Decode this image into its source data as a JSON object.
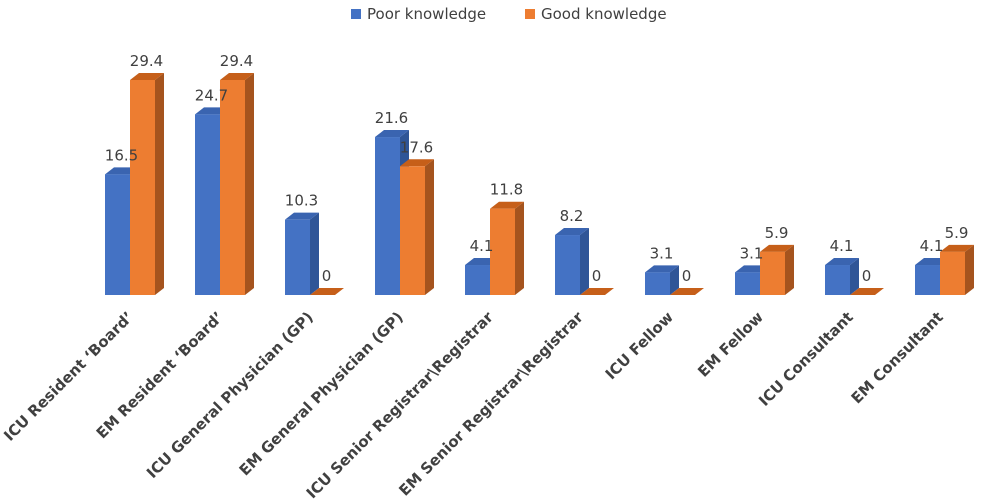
{
  "chart_data": {
    "type": "bar",
    "categories": [
      "ICU Resident ‘Board’",
      "EM Resident ‘Board’",
      "ICU General Physician (GP)",
      "EM General Physician (GP)",
      "ICU Senior Registrar\\Registrar",
      "EM Senior Registrar\\Registrar",
      "ICU Fellow",
      "EM Fellow",
      "ICU Consultant",
      "EM Consultant"
    ],
    "series": [
      {
        "name": "Poor knowledge",
        "values": [
          16.5,
          24.7,
          10.3,
          21.6,
          4.1,
          8.2,
          3.1,
          3.1,
          4.1,
          4.1
        ],
        "color": "#4472C4",
        "side_color": "#2F5597",
        "top_color": "#3A64B0"
      },
      {
        "name": "Good knowledge",
        "values": [
          29.4,
          29.4,
          0,
          17.6,
          11.8,
          0,
          0,
          5.9,
          0,
          5.9
        ],
        "color": "#ED7D31",
        "side_color": "#A5541E",
        "top_color": "#C65F19"
      }
    ],
    "value_labels": {
      "series_0": [
        "16.5",
        "24.7",
        "10.3",
        "21.6",
        "4.1",
        "8.2",
        "3.1",
        "3.1",
        "4.1",
        "4.1"
      ],
      "series_1": [
        "29.4",
        "29.4",
        "0",
        "17.6",
        "11.8",
        "0",
        "0",
        "5.9",
        "0",
        "5.9"
      ]
    },
    "legend_position": "top",
    "grid": false,
    "style": "3d-column",
    "ylim": [
      0,
      29.4
    ]
  }
}
